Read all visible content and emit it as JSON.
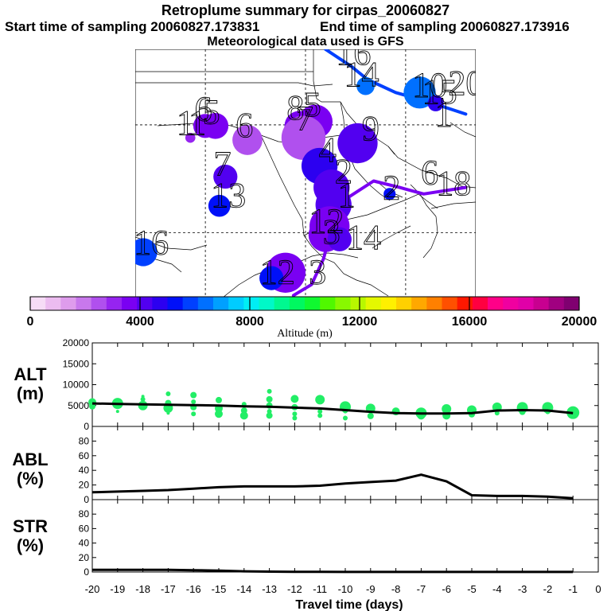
{
  "header": {
    "title": "Retroplume summary for cirpas_20060827",
    "start": "Start time of sampling 20060827.173831",
    "end": "End time of sampling 20060827.173916",
    "met": "Meteorological data used is GFS"
  },
  "map_labels": [
    {
      "text": "16",
      "ax": -95.2,
      "ay": 45.6
    },
    {
      "text": "14",
      "ax": -94.4,
      "ay": 43.6
    },
    {
      "text": "10",
      "ax": -87.6,
      "ay": 42.6
    },
    {
      "text": "15",
      "ax": -86.6,
      "ay": 42.0
    },
    {
      "text": "20",
      "ax": -84.0,
      "ay": 42.8
    },
    {
      "text": "6",
      "ax": -110.2,
      "ay": 40.4
    },
    {
      "text": "5",
      "ax": -109.4,
      "ay": 40.1
    },
    {
      "text": "1",
      "ax": -112.0,
      "ay": 39.1
    },
    {
      "text": "1",
      "ax": -110.8,
      "ay": 39.1
    },
    {
      "text": "6",
      "ax": -106.1,
      "ay": 38.9
    },
    {
      "text": "8",
      "ax": -101.0,
      "ay": 40.5
    },
    {
      "text": "5",
      "ax": -99.3,
      "ay": 40.8
    },
    {
      "text": "7",
      "ax": -100.1,
      "ay": 39.5
    },
    {
      "text": "9",
      "ax": -93.5,
      "ay": 38.6
    },
    {
      "text": "1",
      "ax": -86.2,
      "ay": 39.9
    },
    {
      "text": "7",
      "ax": -108.3,
      "ay": 35.3
    },
    {
      "text": "13",
      "ax": -107.7,
      "ay": 32.4
    },
    {
      "text": "6",
      "ax": -87.6,
      "ay": 34.5
    },
    {
      "text": "18",
      "ax": -85.2,
      "ay": 33.5
    },
    {
      "text": "2",
      "ax": -91.4,
      "ay": 33.1
    },
    {
      "text": "2",
      "ax": -96.2,
      "ay": 34.6
    },
    {
      "text": "4",
      "ax": -97.8,
      "ay": 36.6
    },
    {
      "text": "1",
      "ax": -95.9,
      "ay": 32.4
    },
    {
      "text": "12",
      "ax": -97.9,
      "ay": 30.0
    },
    {
      "text": "3",
      "ax": -97.4,
      "ay": 29.0
    },
    {
      "text": "14",
      "ax": -94.2,
      "ay": 28.5
    },
    {
      "text": "16",
      "ax": -115.4,
      "ay": 28.0
    },
    {
      "text": "12",
      "ax": -102.8,
      "ay": 25.3
    },
    {
      "text": "3",
      "ax": -98.8,
      "ay": 25.3
    }
  ],
  "colorbar": {
    "ticks": [
      "0",
      "4000",
      "8000",
      "12000",
      "16000",
      "20000"
    ],
    "label": "Altitude (m)",
    "colors": [
      "#f6dcf6",
      "#ecbcf0",
      "#de9cec",
      "#c878ec",
      "#b050ee",
      "#9624f0",
      "#7a00f2",
      "#5200f0",
      "#2c00f0",
      "#0010f8",
      "#0040ff",
      "#0070ff",
      "#00a0ff",
      "#00ccff",
      "#00eef4",
      "#00f8c8",
      "#00f890",
      "#00f860",
      "#10f830",
      "#50f800",
      "#88f800",
      "#b8f800",
      "#e4f800",
      "#fff000",
      "#ffd000",
      "#ffa800",
      "#ff8000",
      "#ff5000",
      "#ff1800",
      "#ff0040",
      "#ff0088",
      "#f000a0",
      "#e000a8",
      "#c80090",
      "#a00080",
      "#800070"
    ]
  },
  "chart_data": [
    {
      "type": "scatter",
      "title": "ALT (m)",
      "xlabel": "Travel time (days)",
      "ylabel": "ALT (m)",
      "xlim": [
        -20,
        0
      ],
      "ylim": [
        0,
        20000
      ],
      "yticks": [
        "20000",
        "15000",
        "10000",
        "5000",
        "0"
      ],
      "median_line": {
        "x": [
          -20,
          -19,
          -18,
          -17,
          -16,
          -15,
          -14,
          -13,
          -12,
          -11,
          -10,
          -9,
          -8,
          -7,
          -6,
          -5,
          -4,
          -3,
          -2,
          -1
        ],
        "y": [
          5500,
          5400,
          5300,
          5200,
          5100,
          5000,
          4800,
          4700,
          4500,
          4300,
          3900,
          3500,
          3200,
          3100,
          3100,
          3200,
          3800,
          3900,
          3800,
          3200
        ]
      },
      "points": [
        {
          "x": -20,
          "y": 5800,
          "r": 5
        },
        {
          "x": -20,
          "y": 4800,
          "r": 4
        },
        {
          "x": -19,
          "y": 5500,
          "r": 7
        },
        {
          "x": -19,
          "y": 3600,
          "r": 2
        },
        {
          "x": -18,
          "y": 6500,
          "r": 3
        },
        {
          "x": -18,
          "y": 5000,
          "r": 6
        },
        {
          "x": -18,
          "y": 7200,
          "r": 2
        },
        {
          "x": -17,
          "y": 7800,
          "r": 3
        },
        {
          "x": -17,
          "y": 5600,
          "r": 4
        },
        {
          "x": -17,
          "y": 4400,
          "r": 6
        },
        {
          "x": -17,
          "y": 3200,
          "r": 2
        },
        {
          "x": -16,
          "y": 7500,
          "r": 4
        },
        {
          "x": -16,
          "y": 5900,
          "r": 3
        },
        {
          "x": -16,
          "y": 4600,
          "r": 4
        },
        {
          "x": -16,
          "y": 3000,
          "r": 3
        },
        {
          "x": -15,
          "y": 6300,
          "r": 4
        },
        {
          "x": -15,
          "y": 4300,
          "r": 5
        },
        {
          "x": -15,
          "y": 3000,
          "r": 5
        },
        {
          "x": -14,
          "y": 5300,
          "r": 3
        },
        {
          "x": -14,
          "y": 3800,
          "r": 4
        },
        {
          "x": -14,
          "y": 2600,
          "r": 5
        },
        {
          "x": -13,
          "y": 8400,
          "r": 3
        },
        {
          "x": -13,
          "y": 6500,
          "r": 4
        },
        {
          "x": -13,
          "y": 5000,
          "r": 4
        },
        {
          "x": -13,
          "y": 3600,
          "r": 3
        },
        {
          "x": -13,
          "y": 2600,
          "r": 4
        },
        {
          "x": -12,
          "y": 6600,
          "r": 5
        },
        {
          "x": -12,
          "y": 4600,
          "r": 4
        },
        {
          "x": -12,
          "y": 3000,
          "r": 3
        },
        {
          "x": -12,
          "y": 2000,
          "r": 3
        },
        {
          "x": -11,
          "y": 6400,
          "r": 6
        },
        {
          "x": -11,
          "y": 3600,
          "r": 3
        },
        {
          "x": -11,
          "y": 2600,
          "r": 3
        },
        {
          "x": -10,
          "y": 4700,
          "r": 7
        },
        {
          "x": -10,
          "y": 3700,
          "r": 3
        },
        {
          "x": -10,
          "y": 2000,
          "r": 3
        },
        {
          "x": -9,
          "y": 4300,
          "r": 6
        },
        {
          "x": -9,
          "y": 2500,
          "r": 4
        },
        {
          "x": -8,
          "y": 3600,
          "r": 5
        },
        {
          "x": -7,
          "y": 3200,
          "r": 7
        },
        {
          "x": -7,
          "y": 2600,
          "r": 5
        },
        {
          "x": -6,
          "y": 4200,
          "r": 6
        },
        {
          "x": -6,
          "y": 2600,
          "r": 5
        },
        {
          "x": -5,
          "y": 3900,
          "r": 6
        },
        {
          "x": -5,
          "y": 2900,
          "r": 4
        },
        {
          "x": -4,
          "y": 4600,
          "r": 6
        },
        {
          "x": -4,
          "y": 3200,
          "r": 3
        },
        {
          "x": -3,
          "y": 4500,
          "r": 7
        },
        {
          "x": -3,
          "y": 3500,
          "r": 4
        },
        {
          "x": -2,
          "y": 4500,
          "r": 7
        },
        {
          "x": -2,
          "y": 3500,
          "r": 3
        },
        {
          "x": -1,
          "y": 3300,
          "r": 8
        }
      ]
    },
    {
      "type": "line",
      "title": "ABL (%)",
      "ylabel": "ABL (%)",
      "xlim": [
        -20,
        0
      ],
      "ylim": [
        0,
        100
      ],
      "yticks": [
        "80",
        "60",
        "40",
        "20",
        "0"
      ],
      "x": [
        -20,
        -19,
        -18,
        -17,
        -16,
        -15,
        -14,
        -13,
        -12,
        -11,
        -10,
        -9,
        -8,
        -7,
        -6,
        -5,
        -4,
        -3,
        -2,
        -1
      ],
      "y": [
        10,
        11,
        12,
        13,
        15,
        17,
        18,
        18,
        18,
        19,
        22,
        24,
        26,
        34,
        25,
        6,
        5,
        5,
        4,
        2
      ]
    },
    {
      "type": "line",
      "title": "STR (%)",
      "ylabel": "STR (%)",
      "xlabel": "Travel time (days)",
      "xlim": [
        -20,
        0
      ],
      "ylim": [
        0,
        100
      ],
      "yticks": [
        "80",
        "60",
        "40",
        "20",
        "0"
      ],
      "xticks": [
        "-20",
        "-19",
        "-18",
        "-17",
        "-16",
        "-15",
        "-14",
        "-13",
        "-12",
        "-11",
        "-10",
        "-9",
        "-8",
        "-7",
        "-6",
        "-5",
        "-4",
        "-3",
        "-2",
        "-1",
        "0"
      ],
      "x": [
        -20,
        -19,
        -18,
        -17,
        -16,
        -15,
        -14,
        -13,
        -12,
        -11,
        -10,
        -9,
        -8,
        -7,
        -6,
        -5,
        -4,
        -3,
        -2,
        -1
      ],
      "y": [
        3,
        3,
        3,
        3,
        2.5,
        2,
        1,
        0.5,
        0.3,
        0.2,
        0.1,
        0.1,
        0.1,
        0.1,
        0.1,
        0.1,
        0.1,
        0.1,
        0.1,
        0.1
      ]
    }
  ],
  "panel_labels": {
    "alt": [
      "ALT",
      "(m)"
    ],
    "abl": [
      "ABL",
      "(%)"
    ],
    "str": [
      "STR",
      "(%)"
    ]
  },
  "map_data": {
    "plume_blobs": [
      {
        "lon": -94.0,
        "lat": 43.6,
        "alt": 6200,
        "r": 0.9
      },
      {
        "lon": -88.6,
        "lat": 43.0,
        "alt": 6500,
        "r": 1.6
      },
      {
        "lon": -87.0,
        "lat": 42.0,
        "alt": 4600,
        "r": 0.8
      },
      {
        "lon": -110.0,
        "lat": 39.9,
        "alt": 3600,
        "r": 1.2
      },
      {
        "lon": -109.0,
        "lat": 39.9,
        "alt": 3700,
        "r": 1.3
      },
      {
        "lon": -105.8,
        "lat": 38.6,
        "alt": 2600,
        "r": 1.5
      },
      {
        "lon": -100.6,
        "lat": 39.9,
        "alt": 3700,
        "r": 1.5
      },
      {
        "lon": -99.0,
        "lat": 40.3,
        "alt": 3800,
        "r": 1.7
      },
      {
        "lon": -100.2,
        "lat": 38.8,
        "alt": 2400,
        "r": 2.2
      },
      {
        "lon": -94.8,
        "lat": 38.3,
        "alt": 3900,
        "r": 2.0
      },
      {
        "lon": -111.5,
        "lat": 38.8,
        "alt": 3200,
        "r": 0.5
      },
      {
        "lon": -98.6,
        "lat": 36.2,
        "alt": 4800,
        "r": 1.8
      },
      {
        "lon": -108.0,
        "lat": 35.2,
        "alt": 3900,
        "r": 1.2
      },
      {
        "lon": -108.6,
        "lat": 32.5,
        "alt": 5200,
        "r": 1.1
      },
      {
        "lon": -97.4,
        "lat": 34.2,
        "alt": 3900,
        "r": 1.8
      },
      {
        "lon": -97.2,
        "lat": 32.6,
        "alt": 4100,
        "r": 1.8
      },
      {
        "lon": -97.6,
        "lat": 30.6,
        "alt": 3800,
        "r": 2.0
      },
      {
        "lon": -98.0,
        "lat": 29.8,
        "alt": 3700,
        "r": 1.7
      },
      {
        "lon": -102.0,
        "lat": 26.3,
        "alt": 3800,
        "r": 2.0
      },
      {
        "lon": -103.4,
        "lat": 25.8,
        "alt": 5400,
        "r": 1.2
      },
      {
        "lon": -116.2,
        "lat": 28.2,
        "alt": 5800,
        "r": 1.4
      },
      {
        "lon": -91.6,
        "lat": 33.6,
        "alt": 5200,
        "r": 0.6
      },
      {
        "lon": -96.6,
        "lat": 29.4,
        "alt": 3900,
        "r": 1.2
      }
    ],
    "trajectories": [
      {
        "alt": 5600,
        "lon": [
          -98.0,
          -95.4,
          -93.8,
          -91.0,
          -87.6,
          -84.0
        ],
        "lat": [
          47.0,
          45.4,
          44.2,
          43.0,
          42.1,
          41.0
        ]
      },
      {
        "alt": 3500,
        "lon": [
          -101.2,
          -99.4,
          -98.2,
          -97.4,
          -96.2,
          -93.2,
          -90.6,
          -88.2,
          -84.0
        ],
        "lat": [
          24.2,
          25.2,
          27.6,
          30.4,
          33.0,
          34.8,
          34.2,
          33.6,
          34.2
        ]
      }
    ]
  }
}
